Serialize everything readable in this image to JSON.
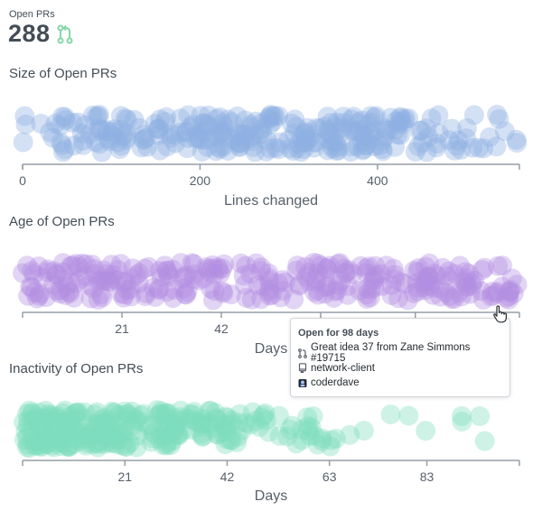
{
  "header": {
    "label": "Open PRs",
    "count": "288",
    "pr_icon": "git-pull-request-icon"
  },
  "colors": {
    "size_dots": "#8fb0e3",
    "age_dots": "#b48ee3",
    "inactivity_dots": "#7fdcbd",
    "axis": "#959da5",
    "tooltip_border": "#d1d5da"
  },
  "chart_data": [
    {
      "type": "scatter",
      "title": "Size of Open PRs",
      "xlabel": "Lines changed",
      "xlim": [
        0,
        560
      ],
      "xticks": [
        0,
        200,
        400
      ],
      "tick_labels": [
        "0",
        "200",
        "400"
      ],
      "n_points": 288,
      "density": [
        [
          30,
          0.25
        ],
        [
          80,
          0.5
        ],
        [
          150,
          0.8
        ],
        [
          180,
          1.0
        ],
        [
          300,
          1.0
        ],
        [
          370,
          0.85
        ],
        [
          420,
          0.65
        ],
        [
          470,
          0.4
        ],
        [
          520,
          0.25
        ],
        [
          560,
          0.15
        ]
      ]
    },
    {
      "type": "scatter",
      "title": "Age of Open PRs",
      "xlabel": "Days",
      "xlim": [
        0,
        105
      ],
      "xticks": [
        21,
        42,
        63,
        83
      ],
      "tick_labels": [
        "21",
        "42",
        "63",
        ""
      ],
      "n_points": 288,
      "density": [
        [
          0,
          0.9
        ],
        [
          20,
          1.0
        ],
        [
          50,
          1.0
        ],
        [
          80,
          0.95
        ],
        [
          105,
          0.9
        ]
      ]
    },
    {
      "type": "scatter",
      "title": "Inactivity of Open PRs",
      "xlabel": "Days",
      "xlim": [
        0,
        102
      ],
      "xticks": [
        21,
        42,
        63,
        83
      ],
      "tick_labels": [
        "21",
        "42",
        "63",
        "83"
      ],
      "n_points": 288,
      "density": [
        [
          0,
          1.0
        ],
        [
          15,
          1.0
        ],
        [
          30,
          0.7
        ],
        [
          45,
          0.35
        ],
        [
          55,
          0.2
        ],
        [
          65,
          0.08
        ],
        [
          75,
          0.04
        ],
        [
          85,
          0.02
        ],
        [
          102,
          0.01
        ]
      ]
    }
  ],
  "tooltip": {
    "title": "Open for 98 days",
    "pr_title": "Great idea 37 from Zane Simmons #19715",
    "repo": "network-client",
    "author": "coderdave"
  }
}
